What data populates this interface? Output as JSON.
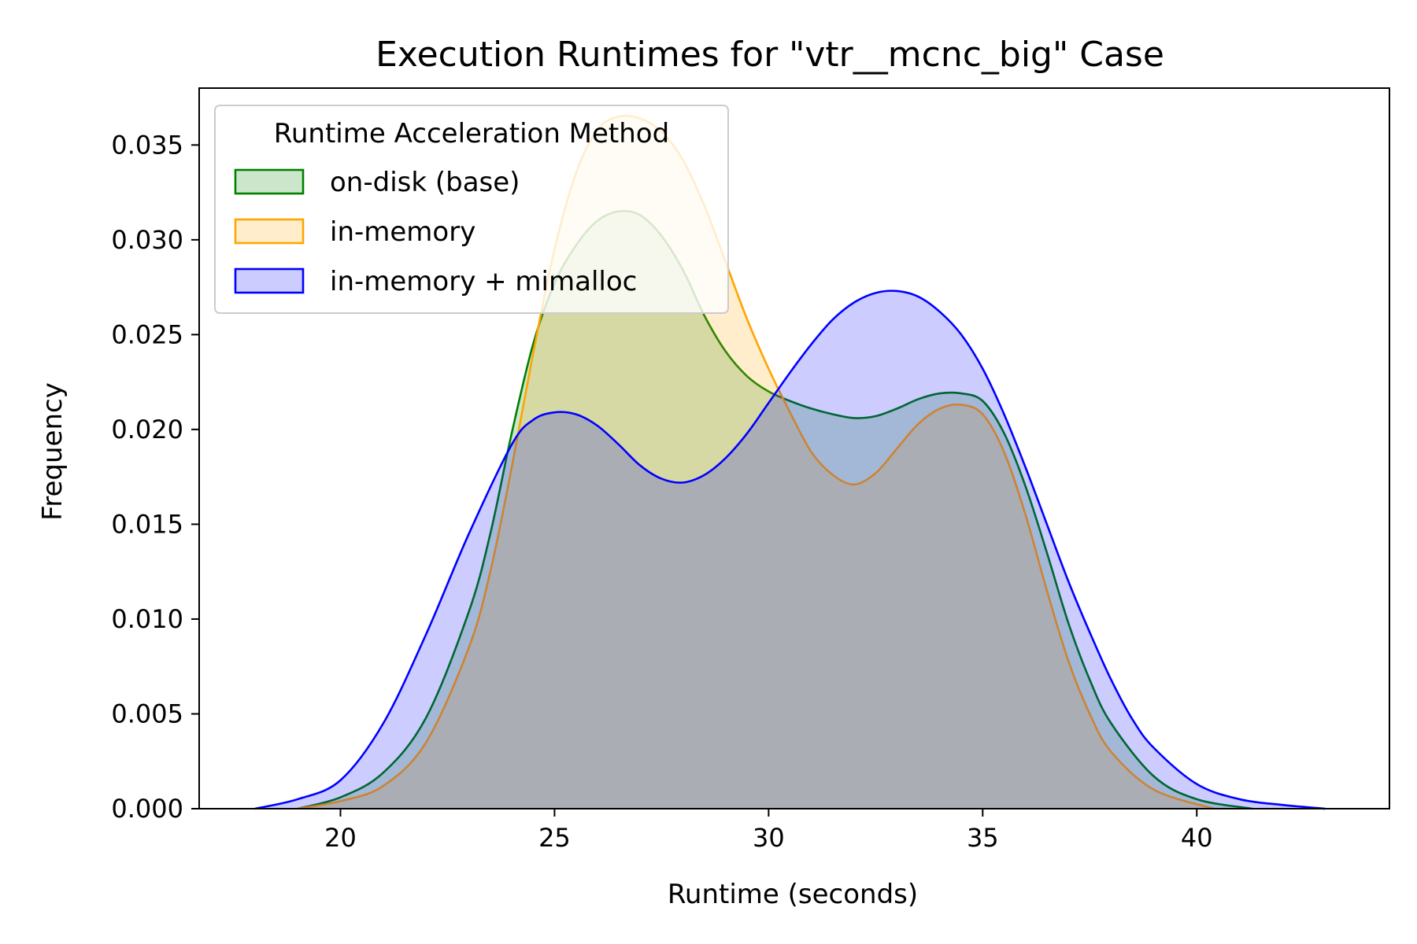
{
  "chart_data": {
    "type": "area",
    "title": "Execution Runtimes for \"vtr__mcnc_big\" Case",
    "xlabel": "Runtime (seconds)",
    "ylabel": "Frequency",
    "xlim": [
      16.7,
      44.5
    ],
    "ylim": [
      0,
      0.038
    ],
    "xticks": [
      20,
      25,
      30,
      35,
      40
    ],
    "xtick_labels": [
      "20",
      "25",
      "30",
      "35",
      "40"
    ],
    "yticks": [
      0,
      0.005,
      0.01,
      0.015,
      0.02,
      0.025,
      0.03,
      0.035
    ],
    "ytick_labels": [
      "0.000",
      "0.005",
      "0.010",
      "0.015",
      "0.020",
      "0.025",
      "0.030",
      "0.035"
    ],
    "grid": false,
    "legend": {
      "title": "Runtime Acceleration Method",
      "placement": "top-left"
    },
    "series": [
      {
        "name": "on-disk (base)",
        "color": "#008000",
        "x": [
          19.0,
          20.0,
          21.0,
          22.0,
          23.0,
          23.5,
          24.0,
          24.5,
          25.0,
          25.5,
          26.0,
          26.5,
          27.0,
          27.5,
          28.0,
          28.5,
          29.0,
          29.5,
          30.0,
          30.5,
          31.0,
          31.5,
          32.0,
          32.5,
          33.0,
          33.5,
          34.0,
          34.5,
          35.0,
          35.5,
          36.0,
          36.5,
          37.0,
          37.5,
          38.0,
          39.0,
          40.0,
          41.3
        ],
        "y": [
          0.0,
          0.0006,
          0.0019,
          0.0048,
          0.0104,
          0.0145,
          0.0198,
          0.0245,
          0.0277,
          0.0297,
          0.031,
          0.0315,
          0.0313,
          0.0302,
          0.0284,
          0.026,
          0.0241,
          0.0228,
          0.022,
          0.0215,
          0.0211,
          0.0208,
          0.0206,
          0.0207,
          0.0211,
          0.0216,
          0.0219,
          0.0219,
          0.0215,
          0.0198,
          0.017,
          0.0135,
          0.0098,
          0.0068,
          0.0045,
          0.0017,
          0.0005,
          0.0
        ]
      },
      {
        "name": "in-memory",
        "color": "#ffa500",
        "x": [
          19.0,
          20.0,
          21.0,
          22.0,
          23.0,
          23.5,
          24.0,
          24.5,
          25.0,
          25.5,
          26.0,
          26.5,
          27.0,
          27.5,
          28.0,
          28.5,
          29.0,
          29.5,
          30.0,
          30.5,
          31.0,
          31.5,
          32.0,
          32.5,
          33.0,
          33.5,
          34.0,
          34.5,
          35.0,
          35.5,
          36.0,
          36.5,
          37.0,
          37.5,
          38.0,
          39.0,
          40.4
        ],
        "y": [
          0.0,
          0.0004,
          0.0012,
          0.0035,
          0.0085,
          0.0125,
          0.018,
          0.024,
          0.0295,
          0.0335,
          0.0358,
          0.0365,
          0.0364,
          0.0357,
          0.0342,
          0.0318,
          0.0288,
          0.0258,
          0.0232,
          0.0209,
          0.0188,
          0.0176,
          0.0171,
          0.0177,
          0.019,
          0.0203,
          0.0211,
          0.0213,
          0.0208,
          0.0188,
          0.0155,
          0.0115,
          0.0078,
          0.005,
          0.003,
          0.001,
          0.0
        ]
      },
      {
        "name": "in-memory + mimalloc",
        "color": "#0000ff",
        "x": [
          18.0,
          19.0,
          20.0,
          21.0,
          22.0,
          23.0,
          24.0,
          24.5,
          25.0,
          25.5,
          26.0,
          26.5,
          27.0,
          27.5,
          28.0,
          28.5,
          29.0,
          29.5,
          30.0,
          30.5,
          31.0,
          31.5,
          32.0,
          32.5,
          33.0,
          33.5,
          34.0,
          34.5,
          35.0,
          35.5,
          36.0,
          36.5,
          37.0,
          37.5,
          38.0,
          38.5,
          39.0,
          40.0,
          41.0,
          42.0,
          43.0
        ],
        "y": [
          0.0,
          0.0005,
          0.0015,
          0.0045,
          0.0092,
          0.0145,
          0.0192,
          0.0205,
          0.0209,
          0.0208,
          0.0202,
          0.0192,
          0.0181,
          0.0174,
          0.0172,
          0.0176,
          0.0185,
          0.0198,
          0.0214,
          0.023,
          0.0245,
          0.0258,
          0.0267,
          0.0272,
          0.0273,
          0.027,
          0.0262,
          0.025,
          0.0232,
          0.0208,
          0.018,
          0.015,
          0.012,
          0.0093,
          0.0068,
          0.0047,
          0.0032,
          0.0013,
          0.0005,
          0.0002,
          0.0
        ]
      }
    ]
  }
}
